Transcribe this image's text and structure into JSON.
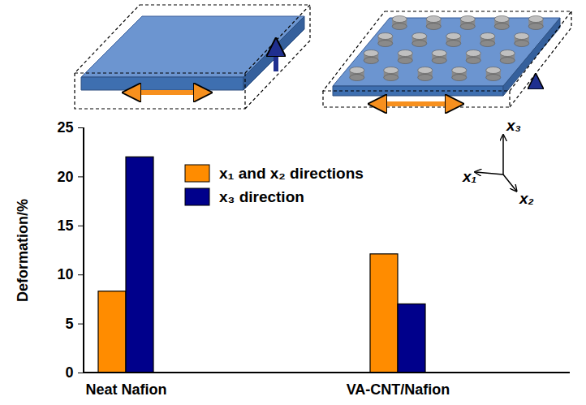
{
  "chart_data": {
    "type": "bar",
    "categories": [
      "Neat Nafion",
      "VA-CNT/Nafion"
    ],
    "series": [
      {
        "name": "x₁ and x₂ directions",
        "color": "#FF8C00",
        "values": [
          8.3,
          12.1
        ]
      },
      {
        "name": "x₃ direction",
        "color": "#00008B",
        "values": [
          22,
          7
        ]
      }
    ],
    "y_label": "Deformation/%",
    "ylim": [
      0,
      25
    ],
    "yticks": [
      0,
      5,
      10,
      15,
      20,
      25
    ],
    "legend": "upper center",
    "annotations": [
      "x₁",
      "x₂",
      "x₃"
    ]
  }
}
